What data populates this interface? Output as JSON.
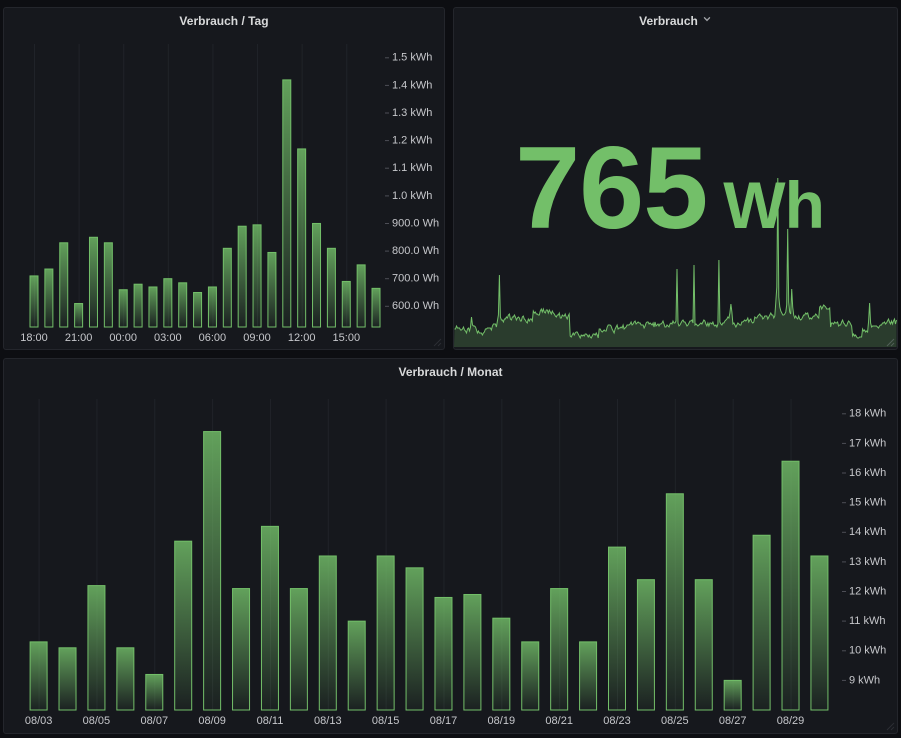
{
  "dashboard": {
    "theme": "grafana-dark",
    "background_color": "#0d0e12",
    "panel_background": "#16181d",
    "panel_border": "#24262c",
    "accent_green": "#73BF69",
    "title_color": "#d8d9da",
    "axis_text_color": "#c7c8cc"
  },
  "panels": {
    "tag": {
      "title": "Verbrauch / Tag"
    },
    "stat": {
      "title": "Verbrauch",
      "value": "765",
      "unit": "Wh",
      "menu_icon": "chevron-down"
    },
    "monat": {
      "title": "Verbrauch / Monat"
    }
  },
  "chart_data": [
    {
      "panel": "verbrauch-tag",
      "type": "bar",
      "title": "Verbrauch / Tag",
      "unit": "Wh",
      "categories": [
        "18:00",
        "19:00",
        "20:00",
        "21:00",
        "22:00",
        "23:00",
        "00:00",
        "01:00",
        "02:00",
        "03:00",
        "04:00",
        "05:00",
        "06:00",
        "07:00",
        "08:00",
        "09:00",
        "10:00",
        "11:00",
        "12:00",
        "13:00",
        "14:00",
        "15:00",
        "16:00",
        "17:00"
      ],
      "values": [
        710,
        735,
        830,
        610,
        850,
        830,
        660,
        680,
        670,
        700,
        685,
        650,
        670,
        810,
        890,
        895,
        795,
        1420,
        1170,
        900,
        810,
        690,
        750,
        665
      ],
      "x_tick_labels": [
        "18:00",
        "21:00",
        "00:00",
        "03:00",
        "06:00",
        "09:00",
        "12:00",
        "15:00"
      ],
      "x_tick_every": 3,
      "y_ticks": [
        {
          "value": 600,
          "label": "600.0 Wh"
        },
        {
          "value": 700,
          "label": "700.0 Wh"
        },
        {
          "value": 800,
          "label": "800.0 Wh"
        },
        {
          "value": 900,
          "label": "900.0 Wh"
        },
        {
          "value": 1000,
          "label": "1.0 kWh"
        },
        {
          "value": 1100,
          "label": "1.1 kWh"
        },
        {
          "value": 1200,
          "label": "1.2 kWh"
        },
        {
          "value": 1300,
          "label": "1.3 kWh"
        },
        {
          "value": 1400,
          "label": "1.4 kWh"
        },
        {
          "value": 1500,
          "label": "1.5 kWh"
        }
      ],
      "ylim": [
        525,
        1550
      ],
      "y_axis_side": "right",
      "grid": "vertical-only",
      "legend": false,
      "bar_color": "#73BF69"
    },
    {
      "panel": "verbrauch-stat",
      "type": "stat",
      "title": "Verbrauch",
      "value": 765,
      "unit": "Wh",
      "value_color": "#73BF69",
      "sparkline": [
        18,
        18,
        21,
        19,
        19,
        19,
        17,
        17,
        18,
        20,
        17,
        16,
        14,
        18,
        19,
        16,
        20,
        30,
        22,
        21,
        21,
        20,
        17,
        14,
        16,
        14,
        14,
        14,
        12,
        14,
        15,
        18,
        18,
        19,
        19,
        19,
        19,
        17,
        21,
        23,
        23,
        23,
        20,
        26,
        32,
        72,
        30,
        27,
        27,
        25,
        28,
        28,
        30,
        29,
        32,
        33,
        28,
        27,
        30,
        30,
        32,
        30,
        27,
        29,
        30,
        29,
        26,
        26,
        30,
        31,
        28,
        27,
        25,
        24,
        28,
        26,
        28,
        28,
        26,
        36,
        34,
        35,
        33,
        33,
        32,
        32,
        36,
        38,
        35,
        38,
        35,
        34,
        37,
        37,
        34,
        37,
        35,
        33,
        36,
        34,
        33,
        31,
        30,
        32,
        32,
        34,
        29,
        29,
        32,
        31,
        31,
        33,
        30,
        28,
        31,
        33,
        11,
        10,
        12,
        14,
        12,
        14,
        15,
        15,
        13,
        11,
        9,
        12,
        11,
        12,
        11,
        13,
        13,
        12,
        10,
        12,
        10,
        9,
        11,
        13,
        13,
        12,
        14,
        12,
        9,
        18,
        18,
        16,
        15,
        16,
        17,
        16,
        16,
        20,
        22,
        22,
        22,
        21,
        18,
        16,
        14,
        18,
        20,
        22,
        18,
        19,
        19,
        20,
        19,
        22,
        18,
        19,
        20,
        22,
        22,
        22,
        23,
        25,
        22,
        23,
        25,
        26,
        23,
        24,
        25,
        24,
        24,
        22,
        22,
        22,
        19,
        21,
        24,
        25,
        25,
        23,
        24,
        23,
        22,
        24,
        20,
        25,
        21,
        22,
        23,
        21,
        23,
        23,
        24,
        26,
        23,
        20,
        20,
        22,
        21,
        20,
        23,
        24,
        23,
        26,
        24,
        24,
        26,
        78,
        24,
        21,
        22,
        24,
        26,
        27,
        25,
        25,
        23,
        21,
        22,
        24,
        26,
        26,
        27,
        24,
        82,
        22,
        23,
        22,
        21,
        22,
        23,
        24,
        23,
        25,
        27,
        26,
        23,
        21,
        24,
        21,
        24,
        24,
        23,
        25,
        22,
        21,
        22,
        20,
        23,
        87,
        25,
        23,
        22,
        24,
        24,
        26,
        27,
        28,
        30,
        29,
        34,
        43,
        35,
        23,
        24,
        22,
        20,
        22,
        24,
        23,
        22,
        22,
        25,
        25,
        26,
        27,
        26,
        27,
        29,
        25,
        27,
        28,
        25,
        24,
        25,
        30,
        29,
        29,
        31,
        32,
        33,
        31,
        31,
        28,
        29,
        31,
        31,
        31,
        28,
        30,
        32,
        34,
        32,
        32,
        29,
        31,
        45,
        60,
        169,
        50,
        40,
        36,
        34,
        32,
        32,
        33,
        35,
        42,
        118,
        45,
        35,
        33,
        58,
        40,
        32,
        29,
        31,
        29,
        28,
        31,
        28,
        27,
        28,
        30,
        32,
        32,
        34,
        33,
        34,
        30,
        28,
        29,
        28,
        30,
        31,
        31,
        33,
        32,
        30,
        29,
        40,
        41,
        38,
        40,
        42,
        41,
        40,
        38,
        38,
        38,
        39,
        20,
        24,
        24,
        23,
        25,
        24,
        24,
        25,
        21,
        22,
        22,
        25,
        27,
        24,
        23,
        21,
        21,
        24,
        26,
        25,
        23,
        21,
        11,
        13,
        11,
        12,
        10,
        9,
        9,
        10,
        10,
        10,
        18,
        16,
        17,
        15,
        16,
        15,
        26,
        44,
        24,
        20,
        21,
        21,
        21,
        21,
        21,
        20,
        19,
        21,
        22,
        22,
        24,
        24,
        25,
        23,
        24,
        26,
        28,
        25,
        23,
        26,
        23,
        26,
        28,
        23,
        27
      ]
    },
    {
      "panel": "verbrauch-monat",
      "type": "bar",
      "title": "Verbrauch / Monat",
      "unit": "kWh",
      "categories": [
        "08/03",
        "08/04",
        "08/05",
        "08/06",
        "08/07",
        "08/08",
        "08/09",
        "08/10",
        "08/11",
        "08/12",
        "08/13",
        "08/14",
        "08/15",
        "08/16",
        "08/17",
        "08/18",
        "08/19",
        "08/20",
        "08/21",
        "08/22",
        "08/23",
        "08/24",
        "08/25",
        "08/26",
        "08/27",
        "08/28",
        "08/29",
        "08/30"
      ],
      "values": [
        10.3,
        10.1,
        12.2,
        10.1,
        9.2,
        13.7,
        17.4,
        12.1,
        14.2,
        12.1,
        13.2,
        11.0,
        13.2,
        12.8,
        11.8,
        11.9,
        11.1,
        10.3,
        12.1,
        10.3,
        13.5,
        12.4,
        15.3,
        12.4,
        9.0,
        13.9,
        16.4,
        13.2
      ],
      "x_tick_labels": [
        "08/03",
        "08/05",
        "08/07",
        "08/09",
        "08/11",
        "08/13",
        "08/15",
        "08/17",
        "08/19",
        "08/21",
        "08/23",
        "08/25",
        "08/27",
        "08/29"
      ],
      "x_tick_every": 2,
      "y_ticks": [
        {
          "value": 9,
          "label": "9 kWh"
        },
        {
          "value": 10,
          "label": "10 kWh"
        },
        {
          "value": 11,
          "label": "11 kWh"
        },
        {
          "value": 12,
          "label": "12 kWh"
        },
        {
          "value": 13,
          "label": "13 kWh"
        },
        {
          "value": 14,
          "label": "14 kWh"
        },
        {
          "value": 15,
          "label": "15 kWh"
        },
        {
          "value": 16,
          "label": "16 kWh"
        },
        {
          "value": 17,
          "label": "17 kWh"
        },
        {
          "value": 18,
          "label": "18 kWh"
        }
      ],
      "ylim": [
        8.0,
        18.5
      ],
      "y_axis_side": "right",
      "grid": "vertical-only",
      "legend": false,
      "bar_color": "#73BF69"
    }
  ]
}
